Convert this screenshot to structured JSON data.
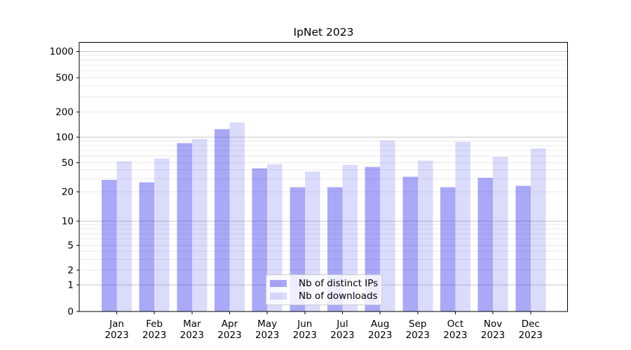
{
  "chart_data": {
    "type": "bar",
    "title": "IpNet 2023",
    "scale": "symlog",
    "grid": true,
    "legend_position": "lower center",
    "categories": [
      "Jan",
      "Feb",
      "Mar",
      "Apr",
      "May",
      "Jun",
      "Jul",
      "Aug",
      "Sep",
      "Oct",
      "Nov",
      "Dec"
    ],
    "year_label": "2023",
    "y_ticks": [
      0,
      1,
      2,
      5,
      10,
      20,
      50,
      100,
      200,
      500,
      1000
    ],
    "ylim": [
      0,
      1200
    ],
    "xlabel": "",
    "ylabel": "",
    "colors": {
      "distinct_ips_fill": "rgba(40,40,235,0.40)",
      "downloads_fill": "rgba(40,40,235,0.17)",
      "major_grid": "#c6c6c6",
      "minor_grid": "#eaeaea",
      "axis": "#000000"
    },
    "series": [
      {
        "name": "Nb of distinct IPs",
        "values": [
          29,
          27,
          85,
          125,
          42,
          23,
          23,
          44,
          32,
          23,
          31,
          24
        ]
      },
      {
        "name": "Nb of downloads",
        "values": [
          52,
          56,
          95,
          150,
          48,
          38,
          47,
          91,
          53,
          88,
          59,
          74
        ]
      }
    ]
  }
}
